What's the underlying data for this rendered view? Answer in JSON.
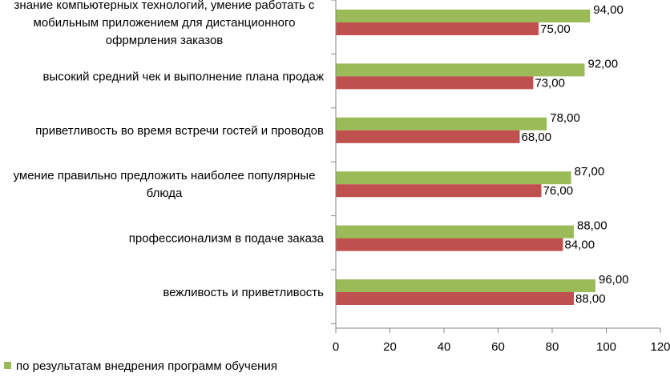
{
  "chart_data": {
    "type": "bar",
    "orientation": "horizontal",
    "categories": [
      [
        "знание компьютерных технологий, умение работать с",
        "мобильным приложением для дистанционного",
        "офрмрления заказов"
      ],
      [
        "высокий средний чек и выполнение плана продаж"
      ],
      [
        "приветливость во время встречи гостей и проводов"
      ],
      [
        "умение правильно предложить наиболее популярные",
        "блюда"
      ],
      [
        "профессионализм в подаче заказа"
      ],
      [
        "вежливость и приветливость"
      ]
    ],
    "series": [
      {
        "name": "по результатам внедрения программ обучения",
        "color": "#9bbb59",
        "values": [
          94,
          92,
          78,
          87,
          88,
          96
        ],
        "labels": [
          "94,00",
          "92,00",
          "78,00",
          "87,00",
          "88,00",
          "96,00"
        ]
      },
      {
        "name": "",
        "color": "#c0504d",
        "values": [
          75,
          73,
          68,
          76,
          84,
          88
        ],
        "labels": [
          "75,00",
          "73,00",
          "68,00",
          "76,00",
          "84,00",
          "88,00"
        ]
      }
    ],
    "xlim": [
      0,
      120
    ],
    "xticks": [
      0,
      20,
      40,
      60,
      80,
      100,
      120
    ],
    "xtick_labels": [
      "0",
      "20",
      "40",
      "60",
      "80",
      "100",
      "120"
    ],
    "grid": false,
    "legend_placement": "bottom-left"
  }
}
